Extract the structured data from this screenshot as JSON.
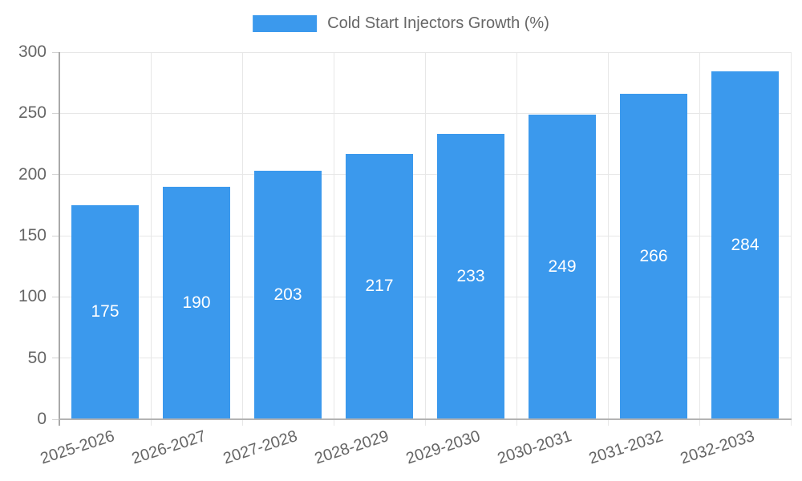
{
  "colors": {
    "bar": "#3B99ED",
    "grid": "#E7E7E7",
    "axis": "#A9A9A9",
    "tick_text": "#666666",
    "value_label_text": "#FFFFFF",
    "background": "#FFFFFF"
  },
  "legend": {
    "label": "Cold Start Injectors Growth (%)"
  },
  "chart_data": {
    "type": "bar",
    "title": "Cold Start Injectors Growth (%)",
    "series": [
      {
        "name": "Cold Start Injectors Growth (%)",
        "values": [
          175,
          190,
          203,
          217,
          233,
          249,
          266,
          284
        ],
        "color": "#3B99ED"
      }
    ],
    "categories": [
      "2025-2026",
      "2026-2027",
      "2027-2028",
      "2028-2029",
      "2029-2030",
      "2030-2031",
      "2031-2032",
      "2032-2033"
    ],
    "values": [
      175,
      190,
      203,
      217,
      233,
      249,
      266,
      284
    ],
    "value_labels_position": "inside-center",
    "xlabel": "",
    "ylabel": "",
    "ylim": [
      0,
      300
    ],
    "yticks": [
      0,
      50,
      100,
      150,
      200,
      250,
      300
    ],
    "grid": "both",
    "legend_position": "top-center",
    "x_tick_label_rotation_deg": -18
  }
}
